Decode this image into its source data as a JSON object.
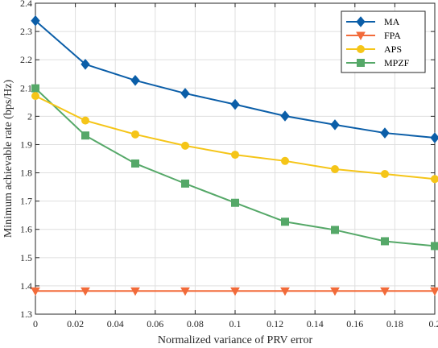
{
  "chart_data": {
    "type": "line",
    "xlabel": "Normalized variance of PRV error",
    "ylabel": "Minimum achievable rate (bps/Hz)",
    "xlim": [
      0,
      0.2
    ],
    "ylim": [
      1.3,
      2.4
    ],
    "xticks": [
      0,
      0.02,
      0.04,
      0.06,
      0.08,
      0.1,
      0.12,
      0.14,
      0.16,
      0.18,
      0.2
    ],
    "xtick_labels": [
      "0",
      "0.02",
      "0.04",
      "0.06",
      "0.08",
      "0.1",
      "0.12",
      "0.14",
      "0.16",
      "0.18",
      "0.2"
    ],
    "yticks": [
      1.3,
      1.4,
      1.5,
      1.6,
      1.7,
      1.8,
      1.9,
      2.0,
      2.1,
      2.2,
      2.3,
      2.4
    ],
    "ytick_labels": [
      "1.3",
      "1.4",
      "1.5",
      "1.6",
      "1.7",
      "1.8",
      "1.9",
      "2",
      "2.1",
      "2.2",
      "2.3",
      "2.4"
    ],
    "grid": true,
    "legend_position": "top-right",
    "x": [
      0,
      0.025,
      0.05,
      0.075,
      0.1,
      0.125,
      0.15,
      0.175,
      0.2
    ],
    "series": [
      {
        "name": "MA",
        "color": "#0b5ea8",
        "marker": "diamond",
        "values": [
          2.338,
          2.184,
          2.127,
          2.081,
          2.042,
          2.001,
          1.97,
          1.941,
          1.924
        ]
      },
      {
        "name": "FPA",
        "color": "#f26b3a",
        "marker": "triangle-down",
        "values": [
          1.382,
          1.382,
          1.382,
          1.382,
          1.382,
          1.382,
          1.382,
          1.382,
          1.382
        ]
      },
      {
        "name": "APS",
        "color": "#f5c518",
        "marker": "circle",
        "values": [
          2.072,
          1.985,
          1.936,
          1.896,
          1.864,
          1.842,
          1.813,
          1.796,
          1.778
        ]
      },
      {
        "name": "MPZF",
        "color": "#55a868",
        "marker": "square",
        "values": [
          2.099,
          1.932,
          1.833,
          1.762,
          1.694,
          1.627,
          1.598,
          1.558,
          1.541
        ]
      }
    ]
  }
}
